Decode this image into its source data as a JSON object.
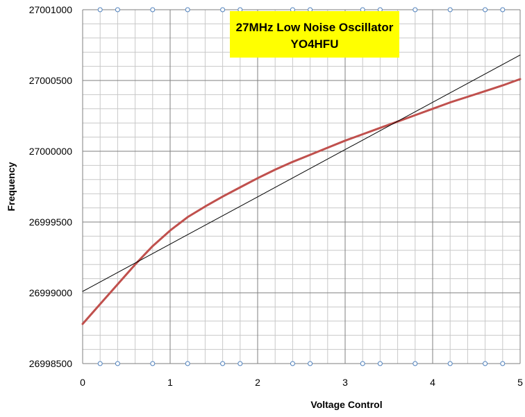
{
  "chart_data": {
    "type": "line",
    "title": "27MHz Low Noise Oscillator",
    "subtitle": "YO4HFU",
    "xlabel": "Voltage Control",
    "ylabel": "Frequency",
    "xlim": [
      0,
      5
    ],
    "ylim": [
      26998500,
      27001000
    ],
    "x_ticks": [
      "0",
      "1",
      "2",
      "3",
      "4",
      "5"
    ],
    "y_ticks": [
      "26998500",
      "26999000",
      "26999500",
      "27000000",
      "27000500",
      "27001000"
    ],
    "grid": true,
    "minor_x_step": 0.2,
    "series": [
      {
        "role": "measured",
        "color": "#c0504d",
        "x": [
          0,
          0.2,
          0.4,
          0.6,
          0.8,
          1.0,
          1.2,
          1.4,
          1.6,
          1.8,
          2.0,
          2.2,
          2.4,
          2.6,
          2.8,
          3.0,
          3.2,
          3.4,
          3.6,
          3.8,
          4.0,
          4.2,
          4.4,
          4.6,
          4.8,
          5.0
        ],
        "values": [
          26998780,
          26998920,
          26999060,
          26999200,
          26999330,
          26999440,
          26999535,
          26999610,
          26999680,
          26999745,
          26999810,
          26999870,
          26999925,
          26999975,
          27000025,
          27000075,
          27000120,
          27000165,
          27000210,
          27000255,
          27000300,
          27000345,
          27000385,
          27000425,
          27000465,
          27000510
        ]
      },
      {
        "role": "linear-trend",
        "color": "#000000",
        "x": [
          0,
          5
        ],
        "values": [
          26999010,
          27000680
        ]
      }
    ],
    "marker_x": [
      0.2,
      0.4,
      0.8,
      1.2,
      1.6,
      1.8,
      2.4,
      2.6,
      3.2,
      3.4,
      3.8,
      4.2,
      4.6,
      4.8
    ],
    "marker_color": "#4f81bd"
  }
}
